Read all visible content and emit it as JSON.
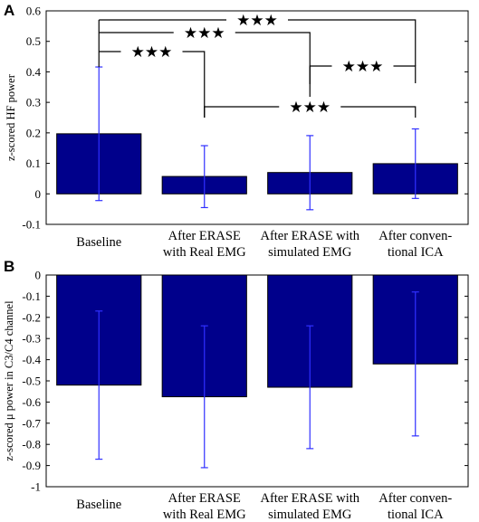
{
  "chart_data": [
    {
      "panel": "A",
      "type": "bar",
      "title": "",
      "xlabel": "",
      "ylabel": "z-scored HF power",
      "categories": [
        "Baseline",
        "After ERASE with Real EMG",
        "After ERASE with simulated EMG",
        "After conventional ICA"
      ],
      "category_lines": [
        [
          "Baseline"
        ],
        [
          "After ERASE",
          "with Real EMG"
        ],
        [
          "After ERASE with",
          "simulated EMG"
        ],
        [
          "After conven-",
          "tional ICA"
        ]
      ],
      "values": [
        0.197,
        0.057,
        0.07,
        0.099
      ],
      "error_low": [
        -0.022,
        -0.045,
        -0.052,
        -0.015
      ],
      "error_high": [
        0.416,
        0.158,
        0.191,
        0.213
      ],
      "ylim": [
        -0.1,
        0.6
      ],
      "yticks": [
        -0.1,
        0,
        0.1,
        0.2,
        0.3,
        0.4,
        0.5,
        0.6
      ],
      "ytick_labels": [
        "-0.1",
        "0",
        "0.1",
        "0.2",
        "0.3",
        "0.4",
        "0.5",
        "0.6"
      ],
      "bar_color": "#00008b",
      "error_color": "#3030ff",
      "grid": false,
      "significance": [
        {
          "from": 0,
          "to": 3,
          "label": "★★★"
        },
        {
          "from": 0,
          "to": 2,
          "label": "★★★"
        },
        {
          "from": 0,
          "to": 1,
          "label": "★★★"
        },
        {
          "from": 2,
          "to": 3,
          "label": "★★★"
        },
        {
          "from": 1,
          "to": 3,
          "label": "★★★"
        }
      ]
    },
    {
      "panel": "B",
      "type": "bar",
      "title": "",
      "xlabel": "",
      "ylabel": "z-scored μ power in C3/C4 channel",
      "categories": [
        "Baseline",
        "After ERASE with Real EMG",
        "After ERASE with simulated EMG",
        "After conventional ICA"
      ],
      "category_lines": [
        [
          "Baseline"
        ],
        [
          "After ERASE",
          "with Real EMG"
        ],
        [
          "After ERASE with",
          "simulated EMG"
        ],
        [
          "After conven-",
          "tional ICA"
        ]
      ],
      "values": [
        -0.52,
        -0.575,
        -0.53,
        -0.42
      ],
      "error_low": [
        -0.87,
        -0.91,
        -0.82,
        -0.76
      ],
      "error_high": [
        -0.17,
        -0.24,
        -0.24,
        -0.08
      ],
      "ylim": [
        -1,
        0
      ],
      "yticks": [
        -1,
        -0.9,
        -0.8,
        -0.7,
        -0.6,
        -0.5,
        -0.4,
        -0.3,
        -0.2,
        -0.1,
        0
      ],
      "ytick_labels": [
        "-1",
        "-0.9",
        "-0.8",
        "-0.7",
        "-0.6",
        "-0.5",
        "-0.4",
        "-0.3",
        "-0.2",
        "-0.1",
        "0"
      ],
      "bar_color": "#00008b",
      "error_color": "#3030ff",
      "grid": false
    }
  ]
}
